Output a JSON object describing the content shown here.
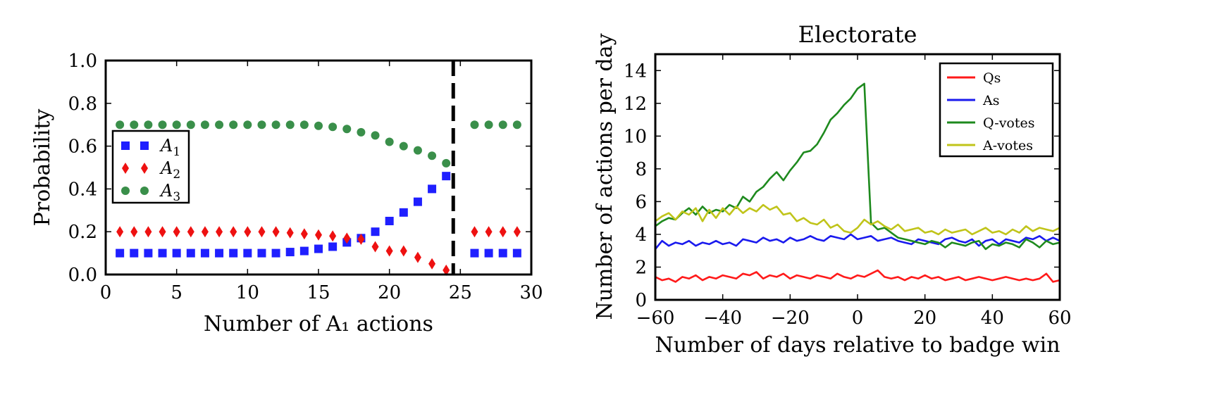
{
  "chart_data": [
    {
      "type": "scatter",
      "title": "",
      "xlabel": "Number of A₁ actions",
      "ylabel": "Probability",
      "xlim": [
        0,
        30
      ],
      "ylim": [
        0,
        1.0
      ],
      "xticks": [
        "0",
        "5",
        "10",
        "15",
        "20",
        "25",
        "30"
      ],
      "yticks": [
        "0.0",
        "0.2",
        "0.4",
        "0.6",
        "0.8",
        "1.0"
      ],
      "xtick_values": [
        0,
        5,
        10,
        15,
        20,
        25,
        30
      ],
      "ytick_values": [
        0,
        0.2,
        0.4,
        0.6,
        0.8,
        1.0
      ],
      "vline": 24.5,
      "legend_position": "center-left",
      "x": [
        1,
        2,
        3,
        4,
        5,
        6,
        7,
        8,
        9,
        10,
        11,
        12,
        13,
        14,
        15,
        16,
        17,
        18,
        19,
        20,
        21,
        22,
        23,
        24,
        26,
        27,
        28,
        29
      ],
      "series": [
        {
          "name": "A",
          "subscript": "1",
          "color": "#1f1fff",
          "marker": "square",
          "values": [
            0.1,
            0.1,
            0.1,
            0.1,
            0.1,
            0.1,
            0.1,
            0.1,
            0.1,
            0.1,
            0.1,
            0.1,
            0.105,
            0.11,
            0.12,
            0.13,
            0.15,
            0.17,
            0.2,
            0.25,
            0.29,
            0.34,
            0.4,
            0.46,
            0.1,
            0.1,
            0.1,
            0.1
          ]
        },
        {
          "name": "A",
          "subscript": "2",
          "color": "#ee1111",
          "marker": "diamond",
          "values": [
            0.2,
            0.2,
            0.2,
            0.2,
            0.2,
            0.2,
            0.2,
            0.2,
            0.2,
            0.2,
            0.2,
            0.2,
            0.195,
            0.19,
            0.185,
            0.18,
            0.17,
            0.165,
            0.13,
            0.11,
            0.11,
            0.08,
            0.05,
            0.02,
            0.2,
            0.2,
            0.2,
            0.2
          ]
        },
        {
          "name": "A",
          "subscript": "3",
          "color": "#3a8f4a",
          "marker": "circle",
          "values": [
            0.7,
            0.7,
            0.7,
            0.7,
            0.7,
            0.7,
            0.7,
            0.7,
            0.7,
            0.7,
            0.7,
            0.7,
            0.7,
            0.7,
            0.695,
            0.69,
            0.68,
            0.665,
            0.65,
            0.62,
            0.6,
            0.58,
            0.555,
            0.52,
            0.7,
            0.7,
            0.7,
            0.7
          ]
        }
      ]
    },
    {
      "type": "line",
      "title": "Electorate",
      "xlabel": "Number of days relative to badge win",
      "ylabel": "Number of actions per day",
      "xlim": [
        -60,
        60
      ],
      "ylim": [
        0,
        15
      ],
      "xticks": [
        "−60",
        "−40",
        "−20",
        "0",
        "20",
        "40",
        "60"
      ],
      "yticks": [
        "0",
        "2",
        "4",
        "6",
        "8",
        "10",
        "12",
        "14"
      ],
      "xtick_values": [
        -60,
        -40,
        -20,
        0,
        20,
        40,
        60
      ],
      "ytick_values": [
        0,
        2,
        4,
        6,
        8,
        10,
        12,
        14
      ],
      "legend_position": "top-right",
      "x_start": -60,
      "x_step": 2,
      "series": [
        {
          "name": "Qs",
          "color": "#ff1a1a",
          "values": [
            1.4,
            1.2,
            1.3,
            1.1,
            1.4,
            1.3,
            1.5,
            1.2,
            1.4,
            1.3,
            1.5,
            1.4,
            1.3,
            1.6,
            1.5,
            1.7,
            1.3,
            1.5,
            1.4,
            1.6,
            1.3,
            1.5,
            1.4,
            1.3,
            1.5,
            1.4,
            1.3,
            1.6,
            1.4,
            1.3,
            1.5,
            1.4,
            1.6,
            1.8,
            1.4,
            1.3,
            1.4,
            1.2,
            1.4,
            1.3,
            1.5,
            1.3,
            1.4,
            1.2,
            1.3,
            1.4,
            1.2,
            1.3,
            1.4,
            1.3,
            1.2,
            1.3,
            1.4,
            1.3,
            1.2,
            1.3,
            1.2,
            1.3,
            1.6,
            1.1,
            1.2
          ]
        },
        {
          "name": "As",
          "color": "#1a1aee",
          "values": [
            3.1,
            3.6,
            3.3,
            3.5,
            3.4,
            3.6,
            3.3,
            3.5,
            3.4,
            3.6,
            3.4,
            3.5,
            3.3,
            3.7,
            3.6,
            3.5,
            3.8,
            3.6,
            3.7,
            3.5,
            3.8,
            3.6,
            3.7,
            3.9,
            3.7,
            3.6,
            3.9,
            3.8,
            3.7,
            4.0,
            3.7,
            3.8,
            3.9,
            3.6,
            3.7,
            3.8,
            3.6,
            3.5,
            3.4,
            3.7,
            3.6,
            3.5,
            3.4,
            3.7,
            3.8,
            3.6,
            3.5,
            3.7,
            3.3,
            3.6,
            3.7,
            3.4,
            3.7,
            3.6,
            3.5,
            3.8,
            3.7,
            3.9,
            3.6,
            3.8,
            3.6
          ]
        },
        {
          "name": "Q-votes",
          "color": "#1e8a1e",
          "values": [
            4.5,
            4.8,
            5.0,
            4.9,
            5.3,
            5.6,
            5.2,
            5.7,
            5.3,
            5.5,
            5.4,
            5.8,
            5.6,
            6.3,
            6.0,
            6.6,
            6.9,
            7.4,
            7.8,
            7.3,
            7.9,
            8.4,
            9.0,
            9.1,
            9.5,
            10.2,
            11.0,
            11.4,
            11.9,
            12.3,
            12.9,
            13.2,
            4.7,
            4.3,
            4.4,
            4.1,
            3.8,
            3.7,
            3.6,
            3.5,
            3.4,
            3.6,
            3.5,
            3.2,
            3.5,
            3.4,
            3.3,
            3.5,
            3.6,
            3.1,
            3.4,
            3.3,
            3.5,
            3.4,
            3.2,
            3.7,
            3.5,
            3.2,
            3.6,
            3.4,
            3.5
          ]
        },
        {
          "name": "A-votes",
          "color": "#c0c41a",
          "values": [
            4.8,
            5.1,
            5.3,
            4.9,
            5.4,
            5.2,
            5.6,
            4.8,
            5.5,
            5.0,
            5.6,
            5.2,
            5.7,
            5.3,
            5.6,
            5.4,
            5.8,
            5.5,
            5.7,
            5.2,
            5.3,
            4.8,
            5.0,
            4.7,
            4.6,
            4.9,
            4.4,
            4.6,
            4.2,
            4.1,
            4.4,
            4.9,
            4.6,
            4.8,
            4.5,
            4.3,
            4.6,
            4.2,
            4.3,
            4.4,
            4.1,
            4.2,
            4.0,
            4.3,
            4.1,
            4.2,
            4.3,
            4.0,
            4.2,
            4.4,
            4.1,
            4.2,
            4.0,
            4.3,
            4.1,
            4.5,
            4.2,
            4.4,
            4.3,
            4.2,
            4.4
          ]
        }
      ]
    }
  ]
}
